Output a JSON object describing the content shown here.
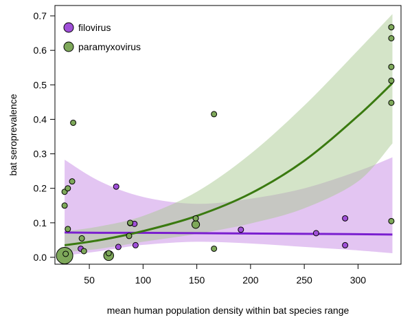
{
  "chart_data": {
    "type": "scatter",
    "title": "",
    "xlabel": "mean human population density within bat species range",
    "ylabel": "bat seroprevalence",
    "xlim": [
      18,
      340
    ],
    "ylim": [
      -0.02,
      0.73
    ],
    "x_ticks": [
      50,
      100,
      150,
      200,
      250,
      300
    ],
    "y_ticks": [
      0.0,
      0.1,
      0.2,
      0.3,
      0.4,
      0.5,
      0.6,
      0.7
    ],
    "legend": {
      "placement": "top-left"
    },
    "series": [
      {
        "name": "filovirus",
        "color": "#a050d8",
        "band_color": "#c78be6",
        "line_color": "#7a1fcf",
        "points": [
          {
            "x": 75,
            "y": 0.205,
            "w": 1
          },
          {
            "x": 42,
            "y": 0.025,
            "w": 1
          },
          {
            "x": 77,
            "y": 0.03,
            "w": 1
          },
          {
            "x": 93,
            "y": 0.035,
            "w": 1
          },
          {
            "x": 92,
            "y": 0.097,
            "w": 1
          },
          {
            "x": 88,
            "y": 0.099,
            "w": 1
          },
          {
            "x": 191,
            "y": 0.08,
            "w": 1
          },
          {
            "x": 261,
            "y": 0.07,
            "w": 1
          },
          {
            "x": 288,
            "y": 0.113,
            "w": 1
          },
          {
            "x": 288,
            "y": 0.035,
            "w": 1
          }
        ],
        "fit": {
          "x": [
            27,
            60,
            100,
            150,
            200,
            250,
            300,
            332
          ],
          "y": [
            0.072,
            0.071,
            0.071,
            0.07,
            0.069,
            0.068,
            0.067,
            0.066
          ],
          "lower": [
            0.005,
            0.018,
            0.036,
            0.045,
            0.04,
            0.03,
            0.02,
            0.012
          ],
          "upper": [
            0.283,
            0.22,
            0.175,
            0.155,
            0.17,
            0.2,
            0.25,
            0.29
          ]
        }
      },
      {
        "name": "paramyxovirus",
        "color": "#7ea85a",
        "band_color": "#a9c991",
        "line_color": "#3a7a10",
        "points": [
          {
            "x": 27,
            "y": 0.005,
            "w": 3
          },
          {
            "x": 28,
            "y": 0.01,
            "w": 1
          },
          {
            "x": 27,
            "y": 0.15,
            "w": 1
          },
          {
            "x": 27,
            "y": 0.19,
            "w": 1
          },
          {
            "x": 30,
            "y": 0.2,
            "w": 1
          },
          {
            "x": 34,
            "y": 0.22,
            "w": 1
          },
          {
            "x": 35,
            "y": 0.39,
            "w": 1
          },
          {
            "x": 30,
            "y": 0.082,
            "w": 1
          },
          {
            "x": 43,
            "y": 0.055,
            "w": 1
          },
          {
            "x": 45,
            "y": 0.018,
            "w": 1
          },
          {
            "x": 68,
            "y": 0.005,
            "w": 1.8
          },
          {
            "x": 68,
            "y": 0.012,
            "w": 1
          },
          {
            "x": 87,
            "y": 0.062,
            "w": 1
          },
          {
            "x": 88,
            "y": 0.1,
            "w": 1
          },
          {
            "x": 149,
            "y": 0.095,
            "w": 1.4
          },
          {
            "x": 149,
            "y": 0.113,
            "w": 1
          },
          {
            "x": 166,
            "y": 0.415,
            "w": 1
          },
          {
            "x": 166,
            "y": 0.025,
            "w": 1
          },
          {
            "x": 331,
            "y": 0.667,
            "w": 1
          },
          {
            "x": 331,
            "y": 0.635,
            "w": 1
          },
          {
            "x": 331,
            "y": 0.552,
            "w": 1
          },
          {
            "x": 331,
            "y": 0.512,
            "w": 1
          },
          {
            "x": 331,
            "y": 0.448,
            "w": 1
          },
          {
            "x": 331,
            "y": 0.105,
            "w": 1
          }
        ],
        "fit": {
          "x": [
            27,
            60,
            100,
            150,
            200,
            250,
            300,
            332
          ],
          "y": [
            0.035,
            0.05,
            0.076,
            0.12,
            0.185,
            0.28,
            0.41,
            0.505
          ],
          "lower": [
            0.015,
            0.025,
            0.045,
            0.068,
            0.098,
            0.142,
            0.22,
            0.33
          ],
          "upper": [
            0.075,
            0.09,
            0.12,
            0.19,
            0.3,
            0.44,
            0.6,
            0.705
          ]
        }
      }
    ]
  }
}
